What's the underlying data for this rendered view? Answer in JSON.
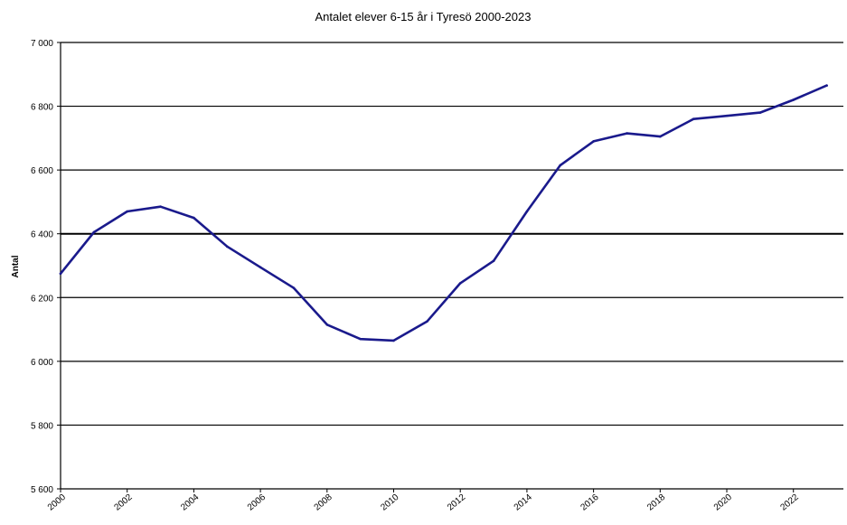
{
  "chart_data": {
    "type": "line",
    "title": "Antalet elever 6-15 år i Tyresö 2000-2023",
    "xlabel": "",
    "ylabel": "Antal",
    "ylim": [
      5600,
      7000
    ],
    "yticks": [
      5600,
      5800,
      6000,
      6200,
      6400,
      6600,
      6800,
      7000
    ],
    "ytick_labels": [
      "5 600",
      "5 800",
      "6 000",
      "6 200",
      "6 400",
      "6 600",
      "6 800",
      "7 000"
    ],
    "xtick_labels": [
      "2000",
      "2002",
      "2004",
      "2006",
      "2008",
      "2010",
      "2012",
      "2014",
      "2016",
      "2018",
      "2020",
      "2022"
    ],
    "grid": "horizontal",
    "legend": "none",
    "line_color": "#1a1a8c",
    "series": [
      {
        "x": [
          2000,
          2001,
          2002,
          2003,
          2004,
          2005,
          2006,
          2007,
          2008,
          2009,
          2010,
          2011,
          2012,
          2013,
          2014,
          2015,
          2016,
          2017,
          2018,
          2019,
          2020,
          2021,
          2022,
          2023
        ],
        "values": [
          6275,
          6405,
          6470,
          6485,
          6450,
          6360,
          6295,
          6230,
          6115,
          6070,
          6065,
          6125,
          6245,
          6315,
          6470,
          6615,
          6690,
          6715,
          6705,
          6760,
          6770,
          6780,
          6820,
          6865
        ]
      }
    ]
  }
}
